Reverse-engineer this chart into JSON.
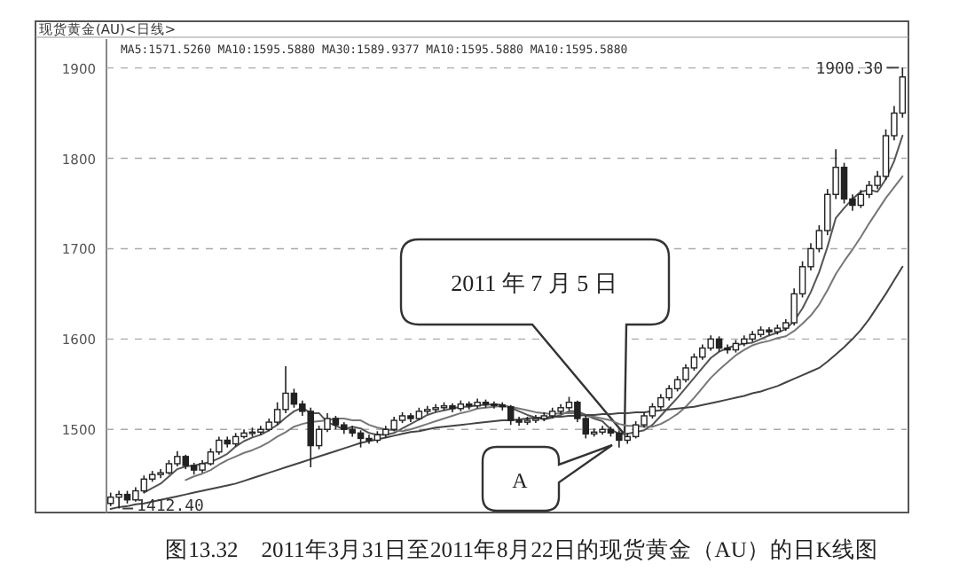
{
  "chart_data": {
    "type": "candlestick",
    "title": "现货黄金(AU)<日线>",
    "subtitle": "MA5:1571.5260 MA10:1595.5880 MA30:1589.9377 MA10:1595.5880 MA10:1595.5880",
    "color": "#222222",
    "categories": [
      null,
      null,
      null,
      null,
      null,
      null,
      null,
      null,
      null,
      null,
      null,
      null,
      null,
      null,
      null,
      null,
      null,
      null,
      null,
      null,
      null,
      null,
      null,
      null,
      null,
      null,
      null,
      null,
      null,
      null,
      null,
      null,
      null,
      null,
      null,
      null,
      null,
      null,
      null,
      null,
      null,
      null,
      null,
      null,
      null,
      null,
      null,
      null,
      null,
      null,
      null,
      null,
      null,
      null,
      null,
      null,
      null,
      null,
      null,
      null,
      null,
      null,
      null,
      null,
      null,
      null,
      null,
      null,
      null,
      null,
      null,
      null,
      null,
      null,
      null,
      null,
      null,
      null,
      null,
      null,
      null,
      null,
      null,
      null,
      null,
      null,
      null,
      null,
      null,
      null,
      null,
      null,
      null,
      null,
      null,
      null
    ],
    "ohlc": [
      [
        1418,
        1430,
        1415,
        1425
      ],
      [
        1425,
        1432,
        1412.4,
        1428
      ],
      [
        1428,
        1432,
        1418,
        1422
      ],
      [
        1422,
        1436,
        1420,
        1432
      ],
      [
        1432,
        1449,
        1430,
        1445
      ],
      [
        1445,
        1454,
        1442,
        1450
      ],
      [
        1450,
        1456,
        1446,
        1452
      ],
      [
        1452,
        1466,
        1450,
        1462
      ],
      [
        1462,
        1476,
        1459,
        1470
      ],
      [
        1470,
        1472,
        1456,
        1460
      ],
      [
        1460,
        1463,
        1450,
        1455
      ],
      [
        1455,
        1466,
        1452,
        1462
      ],
      [
        1462,
        1479,
        1460,
        1475
      ],
      [
        1475,
        1492,
        1472,
        1488
      ],
      [
        1488,
        1492,
        1480,
        1484
      ],
      [
        1484,
        1496,
        1481,
        1492
      ],
      [
        1492,
        1500,
        1490,
        1496
      ],
      [
        1496,
        1502,
        1492,
        1497
      ],
      [
        1497,
        1504,
        1494,
        1500
      ],
      [
        1500,
        1512,
        1498,
        1508
      ],
      [
        1508,
        1530,
        1505,
        1522
      ],
      [
        1522,
        1570,
        1518,
        1540
      ],
      [
        1540,
        1545,
        1524,
        1528
      ],
      [
        1528,
        1532,
        1515,
        1520
      ],
      [
        1520,
        1524,
        1458,
        1482
      ],
      [
        1482,
        1504,
        1478,
        1500
      ],
      [
        1500,
        1518,
        1497,
        1512
      ],
      [
        1512,
        1515,
        1500,
        1505
      ],
      [
        1505,
        1508,
        1495,
        1500
      ],
      [
        1500,
        1504,
        1492,
        1496
      ],
      [
        1496,
        1499,
        1480,
        1490
      ],
      [
        1490,
        1494,
        1484,
        1488
      ],
      [
        1488,
        1498,
        1485,
        1494
      ],
      [
        1494,
        1504,
        1491,
        1500
      ],
      [
        1500,
        1514,
        1498,
        1510
      ],
      [
        1510,
        1519,
        1507,
        1515
      ],
      [
        1515,
        1518,
        1508,
        1512
      ],
      [
        1512,
        1524,
        1510,
        1520
      ],
      [
        1520,
        1526,
        1517,
        1522
      ],
      [
        1522,
        1528,
        1519,
        1524
      ],
      [
        1524,
        1530,
        1521,
        1526
      ],
      [
        1526,
        1529,
        1519,
        1523
      ],
      [
        1523,
        1532,
        1520,
        1528
      ],
      [
        1528,
        1531,
        1522,
        1526
      ],
      [
        1526,
        1534,
        1523,
        1530
      ],
      [
        1530,
        1533,
        1524,
        1528
      ],
      [
        1528,
        1531,
        1523,
        1527
      ],
      [
        1527,
        1530,
        1521,
        1525
      ],
      [
        1525,
        1527,
        1505,
        1510
      ],
      [
        1510,
        1514,
        1504,
        1508
      ],
      [
        1508,
        1514,
        1505,
        1510
      ],
      [
        1510,
        1516,
        1507,
        1512
      ],
      [
        1512,
        1519,
        1509,
        1515
      ],
      [
        1515,
        1524,
        1512,
        1520
      ],
      [
        1520,
        1528,
        1517,
        1524
      ],
      [
        1524,
        1536,
        1521,
        1530
      ],
      [
        1530,
        1532,
        1508,
        1512
      ],
      [
        1512,
        1515,
        1490,
        1495
      ],
      [
        1495,
        1501,
        1492,
        1497
      ],
      [
        1497,
        1504,
        1494,
        1500
      ],
      [
        1500,
        1503,
        1492,
        1496
      ],
      [
        1496,
        1499,
        1480,
        1488
      ],
      [
        1488,
        1496,
        1484,
        1492
      ],
      [
        1492,
        1509,
        1490,
        1505
      ],
      [
        1505,
        1519,
        1502,
        1515
      ],
      [
        1515,
        1529,
        1512,
        1525
      ],
      [
        1525,
        1539,
        1522,
        1535
      ],
      [
        1535,
        1549,
        1532,
        1545
      ],
      [
        1545,
        1559,
        1542,
        1555
      ],
      [
        1555,
        1572,
        1552,
        1568
      ],
      [
        1568,
        1584,
        1565,
        1580
      ],
      [
        1580,
        1594,
        1577,
        1590
      ],
      [
        1590,
        1604,
        1587,
        1600
      ],
      [
        1600,
        1603,
        1586,
        1590
      ],
      [
        1590,
        1594,
        1584,
        1588
      ],
      [
        1588,
        1599,
        1585,
        1595
      ],
      [
        1595,
        1604,
        1592,
        1600
      ],
      [
        1600,
        1609,
        1597,
        1605
      ],
      [
        1605,
        1614,
        1602,
        1610
      ],
      [
        1610,
        1613,
        1604,
        1608
      ],
      [
        1608,
        1616,
        1605,
        1612
      ],
      [
        1612,
        1622,
        1609,
        1618
      ],
      [
        1618,
        1656,
        1615,
        1650
      ],
      [
        1650,
        1686,
        1646,
        1680
      ],
      [
        1680,
        1706,
        1676,
        1700
      ],
      [
        1700,
        1726,
        1696,
        1720
      ],
      [
        1720,
        1766,
        1715,
        1760
      ],
      [
        1760,
        1810,
        1755,
        1790
      ],
      [
        1790,
        1795,
        1750,
        1755
      ],
      [
        1755,
        1760,
        1742,
        1748
      ],
      [
        1748,
        1765,
        1745,
        1760
      ],
      [
        1760,
        1775,
        1756,
        1770
      ],
      [
        1770,
        1786,
        1766,
        1780
      ],
      [
        1780,
        1832,
        1776,
        1825
      ],
      [
        1825,
        1858,
        1820,
        1850
      ],
      [
        1850,
        1900.3,
        1845,
        1890
      ]
    ],
    "series": [
      {
        "type": "line",
        "color": "#555555",
        "values": [
          null,
          null,
          null,
          null,
          1430,
          1435,
          1440,
          1448,
          1456,
          1459,
          1460,
          1462,
          1464,
          1468,
          1473,
          1481,
          1487,
          1491,
          1494,
          1499,
          1505,
          1513,
          1520,
          1524,
          1518,
          1518,
          1508,
          1504,
          1500,
          1503,
          1501,
          1496,
          1494,
          1494,
          1496,
          1501,
          1506,
          1511,
          1516,
          1519,
          1521,
          1523,
          1525,
          1525,
          1527,
          1527,
          1528,
          1527,
          1524,
          1520,
          1516,
          1513,
          1511,
          1513,
          1516,
          1520,
          1520,
          1516,
          1512,
          1509,
          1500,
          1495,
          1495,
          1497,
          1499,
          1505,
          1515,
          1525,
          1535,
          1546,
          1557,
          1568,
          1579,
          1586,
          1590,
          1593,
          1595,
          1596,
          1600,
          1604,
          1607,
          1611,
          1620,
          1634,
          1652,
          1674,
          1702,
          1734,
          1745,
          1755,
          1763,
          1765,
          1763,
          1777,
          1797,
          1825
        ]
      },
      {
        "type": "line",
        "color": "#777777",
        "values": [
          null,
          null,
          null,
          null,
          null,
          null,
          null,
          null,
          null,
          1444,
          1448,
          1451,
          1455,
          1461,
          1466,
          1470,
          1474,
          1477,
          1481,
          1486,
          1492,
          1497,
          1503,
          1506,
          1508,
          1509,
          1510,
          1512,
          1512,
          1510,
          1510,
          1505,
          1502,
          1500,
          1499,
          1498,
          1500,
          1503,
          1506,
          1509,
          1512,
          1515,
          1518,
          1520,
          1523,
          1524,
          1525,
          1526,
          1525,
          1523,
          1521,
          1519,
          1518,
          1517,
          1518,
          1518,
          1518,
          1515,
          1514,
          1512,
          1510,
          1506,
          1504,
          1504,
          1503,
          1503,
          1506,
          1511,
          1517,
          1525,
          1535,
          1546,
          1557,
          1566,
          1574,
          1582,
          1588,
          1593,
          1596,
          1598,
          1601,
          1603,
          1609,
          1617,
          1626,
          1638,
          1654,
          1672,
          1686,
          1699,
          1713,
          1728,
          1742,
          1756,
          1768,
          1780
        ]
      },
      {
        "type": "line",
        "color": "#444444",
        "values": [
          1412,
          1414,
          1415,
          1417,
          1418,
          1420,
          1422,
          1424,
          1426,
          1428,
          1430,
          1432,
          1434,
          1436,
          1438,
          1440,
          1443,
          1446,
          1449,
          1452,
          1455,
          1458,
          1461,
          1464,
          1467,
          1470,
          1473,
          1476,
          1479,
          1482,
          1485,
          1487,
          1489,
          1491,
          1493,
          1495,
          1497,
          1498,
          1500,
          1502,
          1503,
          1504,
          1505,
          1506,
          1507,
          1508,
          1509,
          1510,
          1510,
          1511,
          1512,
          1513,
          1513,
          1514,
          1514,
          1515,
          1515,
          1516,
          1516,
          1517,
          1517,
          1518,
          1518,
          1519,
          1519,
          1520,
          1521,
          1522,
          1523,
          1524,
          1525,
          1527,
          1529,
          1531,
          1533,
          1535,
          1537,
          1540,
          1542,
          1545,
          1548,
          1552,
          1556,
          1560,
          1564,
          1568,
          1575,
          1583,
          1591,
          1600,
          1610,
          1622,
          1636,
          1650,
          1665,
          1680
        ]
      }
    ],
    "ylim": [
      1408,
      1932
    ],
    "yticks": [
      1500,
      1600,
      1700,
      1800,
      1900
    ],
    "grid": "y",
    "tick_labels": "y",
    "annotations": [
      "2011 年 7 月 5 日",
      "A",
      "1900.30",
      "1412.40",
      "图13.32　2011年3月31日至2011年8月22日的现货黄金（AU）的日K线图"
    ]
  }
}
